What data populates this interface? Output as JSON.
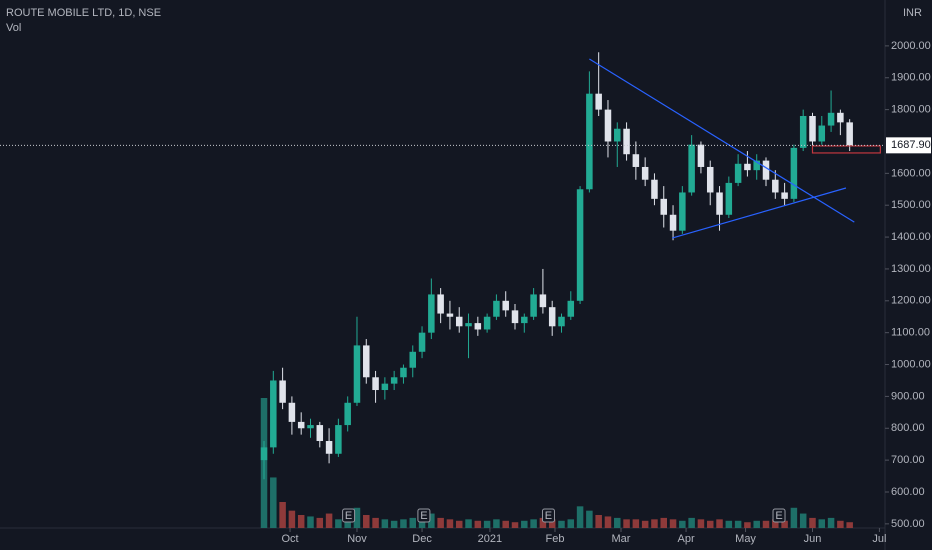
{
  "chart_data": {
    "type": "candlestick",
    "title": "ROUTE MOBILE LTD, 1D, NSE",
    "volume_label": "Vol",
    "currency": "INR",
    "up_color": "#22ab94",
    "down_color": "#e0e3eb",
    "volume_up_color": "#1e6f68",
    "volume_down_color": "#8e3a3a",
    "open": [
      700,
      740,
      950,
      880,
      820,
      800,
      810,
      760,
      720,
      810,
      880,
      1060,
      960,
      920,
      940,
      960,
      990,
      1040,
      1100,
      1220,
      1160,
      1150,
      1120,
      1130,
      1110,
      1150,
      1200,
      1170,
      1130,
      1150,
      1220,
      1180,
      1120,
      1150,
      1200,
      1550,
      1850,
      1800,
      1700,
      1740,
      1660,
      1620,
      1580,
      1520,
      1470,
      1420,
      1540,
      1690,
      1620,
      1540,
      1470,
      1570,
      1630,
      1610,
      1640,
      1580,
      1540,
      1520,
      1680,
      1780,
      1700,
      1750,
      1790,
      1760
    ],
    "high": [
      760,
      980,
      990,
      900,
      850,
      830,
      820,
      800,
      830,
      900,
      1150,
      1080,
      980,
      960,
      980,
      1000,
      1060,
      1120,
      1270,
      1240,
      1200,
      1180,
      1160,
      1150,
      1160,
      1220,
      1230,
      1190,
      1160,
      1240,
      1300,
      1200,
      1160,
      1230,
      1560,
      1920,
      1980,
      1830,
      1760,
      1760,
      1700,
      1650,
      1600,
      1560,
      1500,
      1560,
      1720,
      1700,
      1640,
      1560,
      1590,
      1660,
      1670,
      1660,
      1650,
      1610,
      1570,
      1690,
      1800,
      1790,
      1780,
      1860,
      1800,
      1770
    ],
    "low": [
      640,
      720,
      860,
      780,
      780,
      770,
      740,
      690,
      710,
      790,
      870,
      940,
      880,
      890,
      920,
      940,
      960,
      1020,
      1080,
      1130,
      1110,
      1100,
      1020,
      1090,
      1100,
      1140,
      1150,
      1110,
      1100,
      1140,
      1160,
      1090,
      1100,
      1140,
      1190,
      1540,
      1780,
      1650,
      1620,
      1640,
      1580,
      1560,
      1500,
      1430,
      1390,
      1410,
      1530,
      1600,
      1500,
      1420,
      1460,
      1560,
      1590,
      1580,
      1560,
      1520,
      1500,
      1510,
      1670,
      1680,
      1690,
      1730,
      1720,
      1670
    ],
    "close": [
      740,
      950,
      880,
      820,
      800,
      810,
      760,
      720,
      810,
      880,
      1060,
      960,
      920,
      940,
      960,
      990,
      1040,
      1100,
      1220,
      1160,
      1150,
      1120,
      1130,
      1110,
      1150,
      1200,
      1170,
      1130,
      1150,
      1220,
      1180,
      1120,
      1150,
      1200,
      1550,
      1850,
      1800,
      1700,
      1740,
      1660,
      1620,
      1580,
      1520,
      1470,
      1420,
      1540,
      1690,
      1620,
      1540,
      1470,
      1570,
      1630,
      1610,
      1640,
      1580,
      1540,
      1520,
      1680,
      1780,
      1700,
      1750,
      1790,
      1760,
      1687.9
    ],
    "volume": [
      90,
      35,
      18,
      12,
      9,
      8,
      7,
      10,
      6,
      8,
      14,
      9,
      7,
      6,
      5,
      6,
      7,
      8,
      10,
      7,
      6,
      5,
      6,
      5,
      5,
      6,
      5,
      4,
      5,
      6,
      7,
      6,
      5,
      6,
      15,
      12,
      9,
      8,
      7,
      6,
      6,
      5,
      6,
      7,
      6,
      5,
      7,
      6,
      5,
      6,
      5,
      5,
      4,
      5,
      5,
      6,
      5,
      14,
      10,
      7,
      6,
      7,
      5,
      4
    ],
    "ylim": [
      487,
      2144
    ],
    "yticks": [
      {
        "value": 500,
        "label": "500.00"
      },
      {
        "value": 600,
        "label": "600.00"
      },
      {
        "value": 700,
        "label": "700.00"
      },
      {
        "value": 800,
        "label": "800.00"
      },
      {
        "value": 900,
        "label": "900.00"
      },
      {
        "value": 1000,
        "label": "1000.00"
      },
      {
        "value": 1100,
        "label": "1100.00"
      },
      {
        "value": 1200,
        "label": "1200.00"
      },
      {
        "value": 1300,
        "label": "1300.00"
      },
      {
        "value": 1400,
        "label": "1400.00"
      },
      {
        "value": 1500,
        "label": "1500.00"
      },
      {
        "value": 1600,
        "label": "1600.00"
      },
      {
        "value": 1800,
        "label": "1800.00"
      },
      {
        "value": 1900,
        "label": "1900.00"
      },
      {
        "value": 2000,
        "label": "2000.00"
      }
    ],
    "xlim": [
      -28.4,
      66.8
    ],
    "xticks": [
      {
        "value": 2.8,
        "label": "Oct"
      },
      {
        "value": 10,
        "label": "Nov"
      },
      {
        "value": 17,
        "label": "Dec"
      },
      {
        "value": 24.3,
        "label": "2021"
      },
      {
        "value": 31.3,
        "label": "Feb"
      },
      {
        "value": 38.4,
        "label": "Mar"
      },
      {
        "value": 45.4,
        "label": "Apr"
      },
      {
        "value": 51.8,
        "label": "May"
      },
      {
        "value": 59,
        "label": "Jun"
      },
      {
        "value": 66.2,
        "label": "Jul"
      }
    ],
    "last_price": 1687.9,
    "last_price_label": "1687.90",
    "trendlines": [
      {
        "color": "#2962ff",
        "x": [
          35,
          63.5
        ],
        "y": [
          1959,
          1447
        ]
      },
      {
        "color": "#2962ff",
        "x": [
          43.9,
          62.6
        ],
        "y": [
          1397,
          1554
        ]
      }
    ],
    "zone": {
      "color": "#c2383f",
      "x": [
        59,
        66.3
      ],
      "y": [
        1664,
        1686
      ]
    },
    "events": [
      {
        "x": 9.1,
        "label": "E"
      },
      {
        "x": 17.2,
        "label": "E"
      },
      {
        "x": 30.6,
        "label": "E"
      },
      {
        "x": 55.4,
        "label": "E"
      }
    ]
  }
}
